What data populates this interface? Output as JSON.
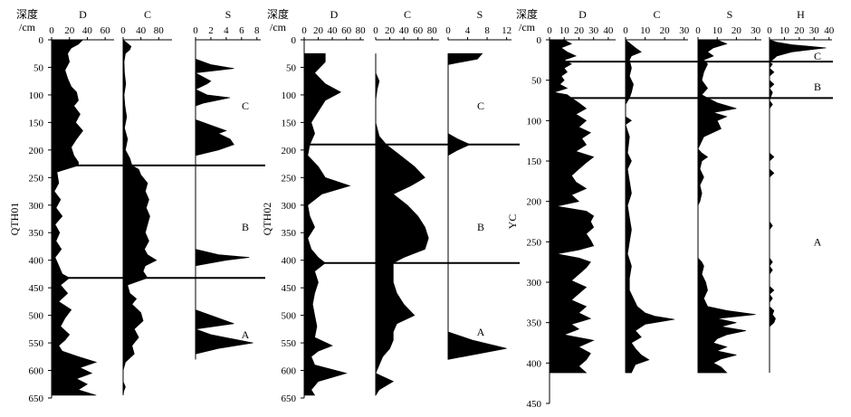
{
  "colors": {
    "fill": "#000000",
    "axis": "#000000",
    "background": "#ffffff"
  },
  "chart_data": [
    {
      "type": "area",
      "panel": "QTH01",
      "depth_header": [
        "深度",
        "/cm"
      ],
      "ylabel": "QTH01",
      "ylim": [
        0,
        650
      ],
      "yticks": [
        0,
        50,
        100,
        150,
        200,
        250,
        300,
        350,
        400,
        450,
        500,
        550,
        600,
        650
      ],
      "zone_boundaries": [
        228,
        432
      ],
      "zone_labels": [
        {
          "text": "C",
          "depth": 120
        },
        {
          "text": "B",
          "depth": 340
        },
        {
          "text": "A",
          "depth": 535
        }
      ],
      "tracks": [
        {
          "name": "D",
          "ticks": [
            0,
            20,
            40,
            60
          ],
          "xmax": 70,
          "depth": [
            0,
            8,
            15,
            25,
            40,
            55,
            70,
            85,
            95,
            110,
            120,
            135,
            150,
            165,
            180,
            195,
            210,
            222,
            228,
            240,
            260,
            275,
            290,
            305,
            320,
            335,
            350,
            365,
            380,
            395,
            410,
            425,
            432,
            445,
            460,
            475,
            490,
            505,
            520,
            535,
            545,
            555,
            565,
            575,
            585,
            595,
            605,
            615,
            625,
            635,
            645
          ],
          "values": [
            35,
            30,
            22,
            18,
            20,
            15,
            18,
            22,
            28,
            30,
            25,
            32,
            27,
            35,
            28,
            22,
            25,
            30,
            30,
            6,
            8,
            3,
            10,
            5,
            12,
            4,
            9,
            5,
            11,
            4,
            8,
            12,
            20,
            10,
            18,
            8,
            22,
            15,
            10,
            20,
            15,
            8,
            12,
            30,
            50,
            32,
            45,
            28,
            40,
            30,
            50
          ]
        },
        {
          "name": "C",
          "ticks": [
            0,
            40,
            80
          ],
          "xmax": 110,
          "depth": [
            0,
            8,
            12,
            18,
            25,
            40,
            60,
            80,
            100,
            120,
            140,
            160,
            180,
            200,
            215,
            228,
            235,
            245,
            260,
            275,
            290,
            305,
            320,
            335,
            350,
            365,
            380,
            390,
            400,
            410,
            420,
            432,
            445,
            460,
            470,
            480,
            495,
            510,
            525,
            540,
            555,
            570,
            585,
            600,
            620,
            630,
            636,
            645
          ],
          "values": [
            0,
            12,
            18,
            15,
            5,
            2,
            3,
            6,
            2,
            4,
            8,
            3,
            10,
            5,
            15,
            20,
            35,
            40,
            55,
            50,
            58,
            52,
            60,
            55,
            50,
            58,
            48,
            55,
            75,
            50,
            45,
            55,
            10,
            15,
            30,
            20,
            40,
            45,
            25,
            35,
            20,
            25,
            5,
            0,
            0,
            5,
            2,
            0
          ]
        },
        {
          "name": "S",
          "ticks": [
            0,
            2,
            4,
            6,
            8
          ],
          "xmax": 8.5,
          "depth": [
            0,
            35,
            45,
            52,
            60,
            75,
            80,
            90,
            100,
            105,
            115,
            120,
            145,
            155,
            165,
            170,
            180,
            190,
            200,
            210,
            220,
            230,
            380,
            390,
            395,
            400,
            410,
            490,
            505,
            515,
            525,
            535,
            550,
            560,
            570,
            580
          ],
          "values": [
            0,
            0,
            2,
            5,
            0,
            2,
            1.5,
            0,
            1.5,
            4.5,
            1,
            0,
            0,
            2,
            4,
            3,
            4.5,
            5,
            3,
            0,
            0,
            0,
            0,
            3,
            7,
            4,
            0,
            0,
            3,
            5,
            0,
            2,
            7.5,
            3,
            0,
            0
          ]
        }
      ]
    },
    {
      "type": "area",
      "panel": "QTH02",
      "depth_header": [
        "深度",
        "/cm"
      ],
      "ylabel": "QTH02",
      "ylim": [
        0,
        650
      ],
      "yticks": [
        0,
        50,
        100,
        150,
        200,
        250,
        300,
        350,
        400,
        450,
        500,
        550,
        600,
        650
      ],
      "zone_boundaries": [
        190,
        405
      ],
      "zone_labels": [
        {
          "text": "C",
          "depth": 120
        },
        {
          "text": "B",
          "depth": 340
        },
        {
          "text": "A",
          "depth": 530
        }
      ],
      "tracks": [
        {
          "name": "D",
          "ticks": [
            0,
            20,
            40,
            60,
            80
          ],
          "xmax": 85,
          "depth": [
            25,
            40,
            60,
            80,
            95,
            110,
            130,
            150,
            170,
            190,
            210,
            230,
            250,
            265,
            280,
            300,
            320,
            340,
            360,
            380,
            395,
            405,
            420,
            440,
            460,
            480,
            500,
            520,
            540,
            555,
            565,
            575,
            590,
            605,
            620,
            635,
            645
          ],
          "values": [
            30,
            30,
            15,
            30,
            52,
            30,
            20,
            10,
            15,
            8,
            5,
            20,
            30,
            65,
            25,
            5,
            8,
            15,
            5,
            10,
            20,
            30,
            15,
            20,
            15,
            12,
            15,
            18,
            15,
            40,
            20,
            10,
            15,
            60,
            20,
            10,
            15
          ]
        },
        {
          "name": "C",
          "ticks": [
            0,
            20,
            40,
            60,
            80
          ],
          "xmax": 90,
          "depth": [
            25,
            60,
            75,
            90,
            110,
            150,
            175,
            190,
            210,
            230,
            250,
            265,
            280,
            300,
            320,
            340,
            360,
            380,
            395,
            405,
            420,
            440,
            460,
            480,
            500,
            515,
            530,
            545,
            560,
            575,
            590,
            605,
            620,
            635,
            645
          ],
          "values": [
            0,
            0,
            5,
            2,
            0,
            0,
            5,
            15,
            35,
            55,
            70,
            50,
            25,
            45,
            60,
            70,
            75,
            70,
            40,
            25,
            25,
            25,
            30,
            40,
            55,
            30,
            25,
            25,
            20,
            10,
            5,
            0,
            25,
            5,
            0
          ]
        },
        {
          "name": "S",
          "ticks": [
            0,
            4,
            8,
            12
          ],
          "xmax": 13,
          "depth": [
            25,
            35,
            45,
            170,
            180,
            190,
            200,
            210,
            530,
            545,
            560,
            570,
            580
          ],
          "values": [
            7,
            6,
            0,
            0,
            2,
            4.5,
            2,
            0,
            0,
            5,
            12,
            6,
            0
          ]
        }
      ]
    },
    {
      "type": "area",
      "panel": "YC",
      "depth_header": [
        "深度",
        "/cm"
      ],
      "ylabel": "YC",
      "ylim": [
        0,
        450
      ],
      "yticks": [
        0,
        50,
        100,
        150,
        200,
        250,
        300,
        350,
        400,
        450
      ],
      "zone_boundaries": [
        27,
        72
      ],
      "zone_labels": [
        {
          "text": "C",
          "depth": 20
        },
        {
          "text": "B",
          "depth": 58
        },
        {
          "text": "A",
          "depth": 250
        }
      ],
      "tracks": [
        {
          "name": "D",
          "ticks": [
            0,
            10,
            20,
            30,
            40
          ],
          "xmax": 45,
          "depth": [
            0,
            5,
            10,
            15,
            20,
            25,
            30,
            35,
            40,
            45,
            50,
            55,
            60,
            65,
            68,
            72,
            78,
            85,
            92,
            100,
            108,
            115,
            122,
            130,
            138,
            145,
            152,
            160,
            168,
            176,
            184,
            192,
            200,
            206,
            212,
            218,
            225,
            232,
            240,
            248,
            255,
            260,
            265,
            270,
            275,
            282,
            290,
            298,
            306,
            314,
            322,
            330,
            338,
            345,
            352,
            358,
            365,
            372,
            380,
            388,
            396,
            404,
            412
          ],
          "values": [
            10,
            15,
            8,
            12,
            18,
            10,
            15,
            10,
            12,
            8,
            10,
            7,
            12,
            3,
            12,
            15,
            20,
            25,
            18,
            25,
            20,
            28,
            22,
            25,
            18,
            30,
            25,
            20,
            15,
            18,
            25,
            15,
            20,
            5,
            25,
            30,
            28,
            30,
            25,
            28,
            30,
            20,
            5,
            20,
            28,
            25,
            20,
            15,
            25,
            20,
            15,
            25,
            20,
            28,
            15,
            20,
            10,
            30,
            20,
            28,
            25,
            20,
            25
          ]
        },
        {
          "name": "C",
          "ticks": [
            0,
            10,
            20,
            30
          ],
          "xmax": 32,
          "depth": [
            0,
            10,
            15,
            20,
            25,
            35,
            45,
            55,
            65,
            72,
            80,
            95,
            100,
            105,
            120,
            140,
            150,
            160,
            175,
            190,
            205,
            220,
            235,
            250,
            265,
            280,
            295,
            310,
            320,
            330,
            338,
            342,
            346,
            352,
            360,
            368,
            375,
            382,
            390,
            396,
            402,
            412
          ],
          "values": [
            0,
            5,
            8,
            3,
            2,
            3,
            2,
            4,
            3,
            2,
            0,
            0,
            3,
            0,
            2,
            1,
            3,
            1,
            2,
            3,
            1,
            2,
            3,
            2,
            1,
            3,
            2,
            2,
            4,
            6,
            10,
            15,
            25,
            10,
            5,
            8,
            3,
            5,
            8,
            12,
            5,
            3
          ]
        },
        {
          "name": "S",
          "ticks": [
            0,
            10,
            20,
            30
          ],
          "xmax": 33,
          "depth": [
            0,
            5,
            10,
            15,
            20,
            25,
            30,
            40,
            50,
            60,
            68,
            72,
            78,
            85,
            90,
            95,
            100,
            110,
            120,
            135,
            140,
            145,
            150,
            160,
            170,
            180,
            190,
            200,
            205,
            270,
            275,
            280,
            290,
            300,
            310,
            320,
            330,
            335,
            340,
            345,
            350,
            355,
            360,
            365,
            370,
            375,
            380,
            385,
            390,
            395,
            400,
            405,
            412
          ],
          "values": [
            10,
            15,
            8,
            5,
            8,
            3,
            5,
            3,
            2,
            5,
            2,
            5,
            10,
            20,
            8,
            15,
            10,
            12,
            3,
            0,
            2,
            5,
            2,
            1,
            3,
            1,
            2,
            1,
            0,
            0,
            2,
            3,
            2,
            4,
            5,
            3,
            5,
            15,
            30,
            10,
            20,
            12,
            25,
            15,
            10,
            8,
            15,
            10,
            20,
            12,
            8,
            12,
            15
          ]
        },
        {
          "name": "H",
          "ticks": [
            0,
            10,
            20,
            30,
            40
          ],
          "xmax": 42,
          "depth": [
            0,
            3,
            6,
            10,
            15,
            20,
            28,
            30,
            35,
            40,
            45,
            50,
            55,
            60,
            65,
            75,
            80,
            85,
            90,
            140,
            145,
            150,
            160,
            165,
            170,
            225,
            230,
            235,
            270,
            275,
            280,
            285,
            290,
            305,
            310,
            315,
            320,
            325,
            330,
            335,
            340,
            345,
            350,
            355,
            412
          ],
          "values": [
            0,
            5,
            15,
            38,
            15,
            5,
            0,
            2,
            0,
            3,
            0,
            0,
            3,
            0,
            2,
            0,
            2,
            0,
            0,
            0,
            3,
            0,
            0,
            3,
            0,
            0,
            2,
            0,
            0,
            2,
            0,
            2,
            0,
            0,
            3,
            0,
            2,
            0,
            0,
            3,
            2,
            4,
            3,
            0,
            0
          ]
        }
      ]
    }
  ]
}
